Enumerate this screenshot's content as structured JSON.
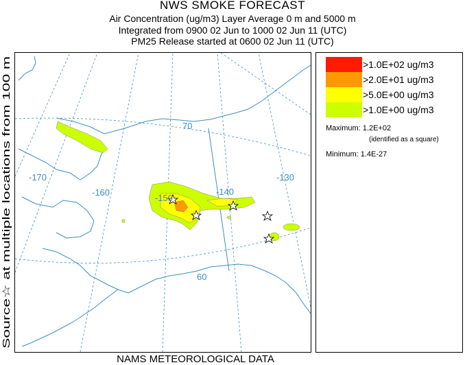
{
  "header": {
    "title": "NWS SMOKE FORECAST",
    "line1": "Air Concentration (ug/m3) Layer Average    0 m and  5000 m",
    "line2": "Integrated from 0900 02 Jun to 1000 02 Jun 11 (UTC)",
    "line3": "PM25 Release started at 0600 02 Jun 11 (UTC)"
  },
  "side_label": "Source☆ at multiple locations   from   100 m",
  "footer": "NAMS METEOROLOGICAL DATA",
  "map": {
    "longitude_labels": [
      "-170",
      "-160",
      "-150",
      "-140",
      "-130"
    ],
    "latitude_labels": [
      "70",
      "60"
    ]
  },
  "legend": {
    "entries": [
      {
        "label": ">1.0E+02 ug/m3",
        "color": "#ff1a00"
      },
      {
        "label": ">2.0E+01 ug/m3",
        "color": "#ff9900"
      },
      {
        "label": ">5.0E+00 ug/m3",
        "color": "#ffff00"
      },
      {
        "label": ">1.0E+00 ug/m3",
        "color": "#ccff00"
      }
    ],
    "maximum": "Maximum: 1.2E+02",
    "maximum_note": "(identified as a square)",
    "minimum": "Minimum: 1.4E-27"
  },
  "colors": {
    "graticule": "#3a8fbf",
    "coast": "#3a8fbf"
  }
}
